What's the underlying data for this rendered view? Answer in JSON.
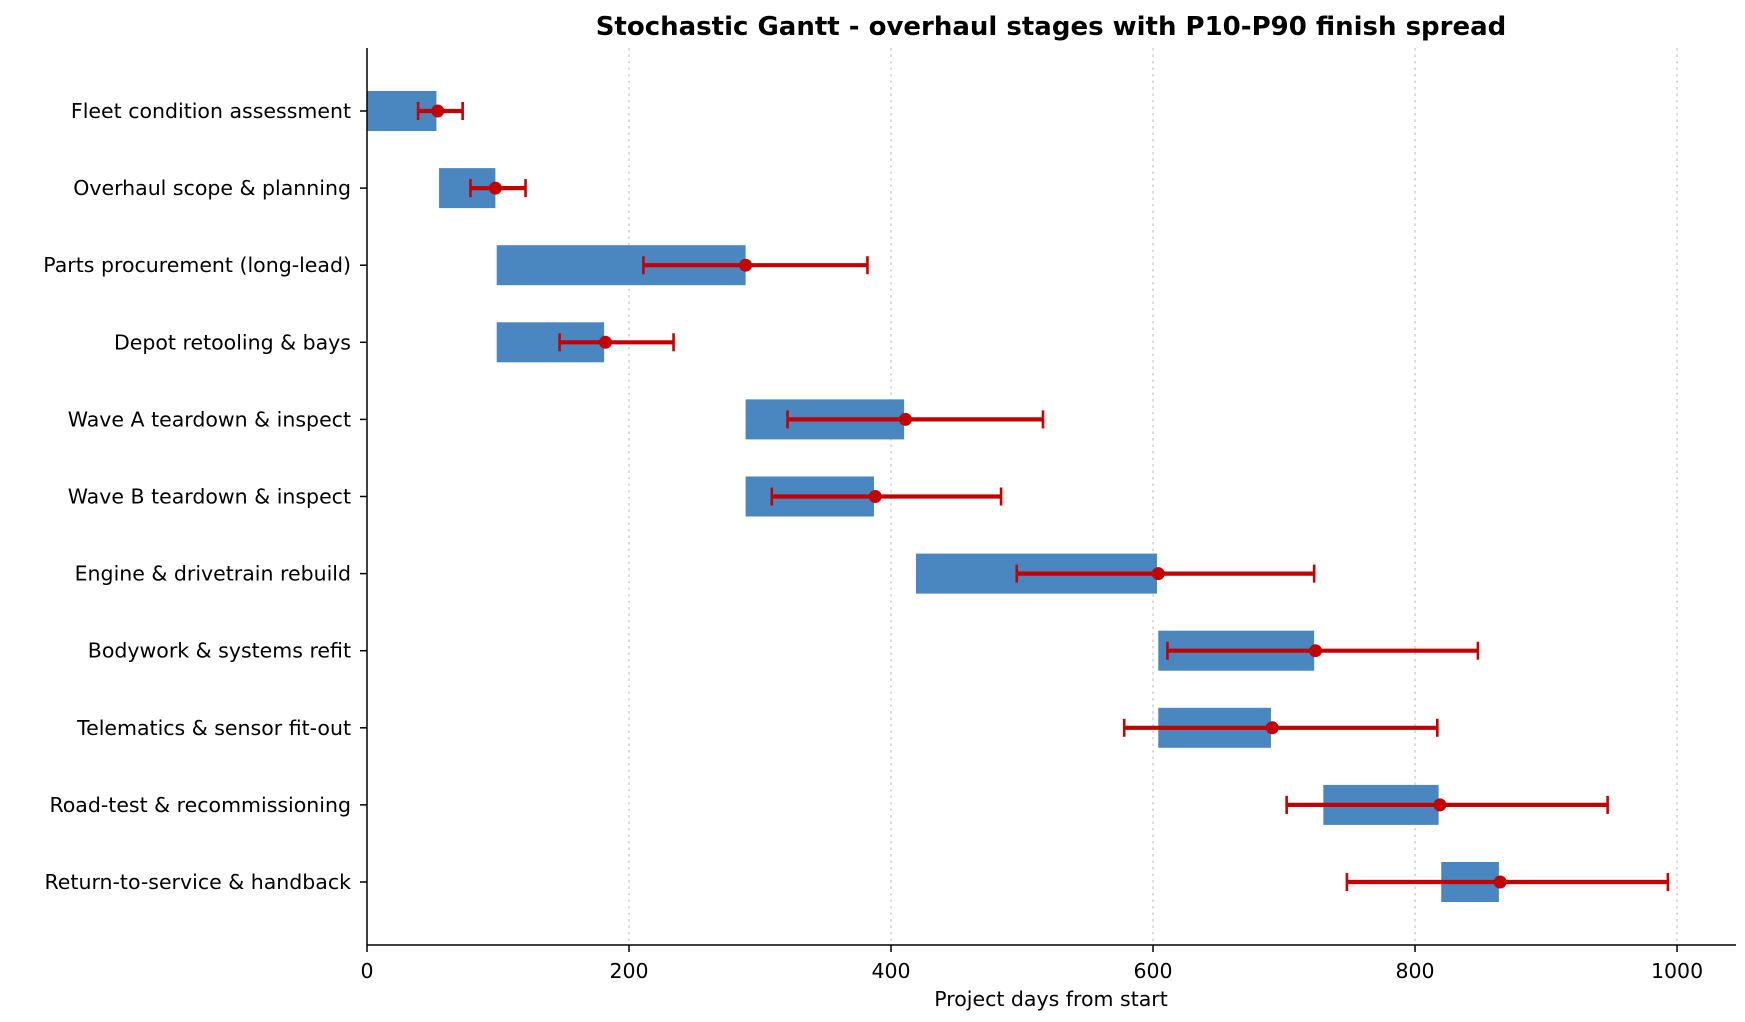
{
  "chart_data": {
    "type": "gantt",
    "title": "Stochastic Gantt - overhaul stages with P10-P90 finish spread",
    "xlabel": "Project days from start",
    "ylabel": "",
    "xlim": [
      0,
      1045
    ],
    "xticks": [
      0,
      200,
      400,
      600,
      800,
      1000
    ],
    "grid": "vertical dotted",
    "colors": {
      "bar": "#4a86c0",
      "spread": "#c40000"
    },
    "tasks": [
      {
        "name": "Fleet condition assessment",
        "start": 0,
        "end": 53,
        "p10": 39,
        "p50": 54,
        "p90": 73
      },
      {
        "name": "Overhaul scope & planning",
        "start": 55,
        "end": 98,
        "p10": 79,
        "p50": 98,
        "p90": 121
      },
      {
        "name": "Parts procurement (long-lead)",
        "start": 99,
        "end": 289,
        "p10": 211,
        "p50": 289,
        "p90": 382
      },
      {
        "name": "Depot retooling & bays",
        "start": 99,
        "end": 181,
        "p10": 147,
        "p50": 182,
        "p90": 234
      },
      {
        "name": "Wave A teardown & inspect",
        "start": 289,
        "end": 410,
        "p10": 321,
        "p50": 411,
        "p90": 516
      },
      {
        "name": "Wave B teardown & inspect",
        "start": 289,
        "end": 387,
        "p10": 309,
        "p50": 388,
        "p90": 484
      },
      {
        "name": "Engine & drivetrain rebuild",
        "start": 419,
        "end": 603,
        "p10": 496,
        "p50": 604,
        "p90": 723
      },
      {
        "name": "Bodywork & systems refit",
        "start": 604,
        "end": 723,
        "p10": 611,
        "p50": 724,
        "p90": 848
      },
      {
        "name": "Telematics & sensor fit-out",
        "start": 604,
        "end": 690,
        "p10": 578,
        "p50": 691,
        "p90": 817
      },
      {
        "name": "Road-test & recommissioning",
        "start": 730,
        "end": 818,
        "p10": 702,
        "p50": 819,
        "p90": 947
      },
      {
        "name": "Return-to-service & handback",
        "start": 820,
        "end": 864,
        "p10": 748,
        "p50": 865,
        "p90": 993
      }
    ]
  }
}
